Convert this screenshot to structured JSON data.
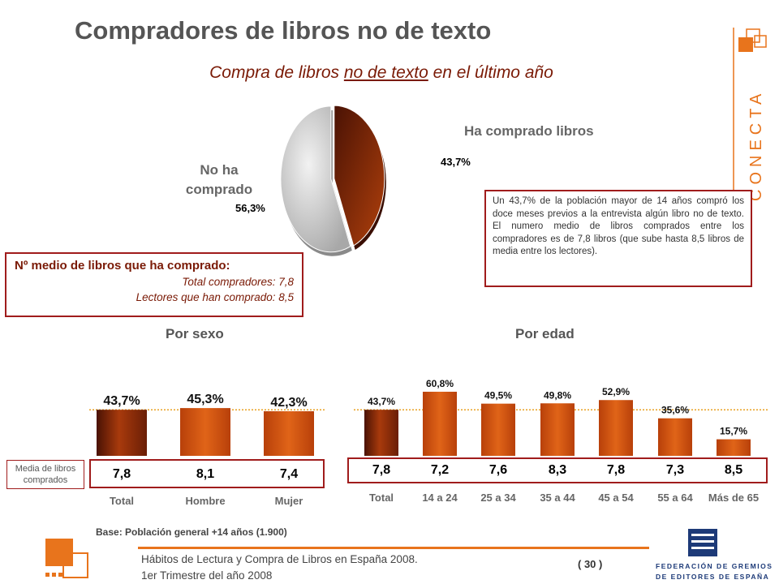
{
  "header": {
    "title": "Compradores de libros no de texto",
    "subtitle_pre": "Compra de libros ",
    "subtitle_underlined": "no de texto",
    "subtitle_post": " en el último año"
  },
  "brand": {
    "wordmark": "CONECTA",
    "color": "#e8741c"
  },
  "pie": {
    "label_bought": "Ha comprado libros",
    "label_not_bought_1": "No ha",
    "label_not_bought_2": "comprado",
    "pct_bought": "43,7%",
    "pct_not_bought": "56,3%"
  },
  "description": "Un 43,7% de la población mayor de 14 años compró los doce meses previos a la entrevista algún libro no de texto. El numero medio de libros comprados entre los compradores es de 7,8 libros (que sube hasta 8,5 libros de media entre los lectores).",
  "average_box": {
    "heading": "Nº medio de libros que ha comprado:",
    "row1": "Total compradores:  7,8",
    "row2": "Lectores que han comprado:  8,5"
  },
  "sections": {
    "by_sex": "Por sexo",
    "by_age": "Por edad"
  },
  "media_label_1": "Media de libros",
  "media_label_2": "comprados",
  "chart_data": [
    {
      "type": "pie",
      "title": "Compra de libros no de texto en el último año",
      "categories": [
        "Ha comprado libros",
        "No ha comprado"
      ],
      "values": [
        43.7,
        56.3
      ],
      "colors": [
        "#8a2a08",
        "#c8c8c8"
      ]
    },
    {
      "type": "bar",
      "title": "Por sexo",
      "categories": [
        "Total",
        "Hombre",
        "Mujer"
      ],
      "values": [
        43.7,
        45.3,
        42.3
      ],
      "labels": [
        "43,7%",
        "45,3%",
        "42,3%"
      ],
      "reference_line": 43.7,
      "average_books": [
        "7,8",
        "8,1",
        "7,4"
      ],
      "ylim": [
        0,
        70
      ]
    },
    {
      "type": "bar",
      "title": "Por edad",
      "categories": [
        "Total",
        "14 a 24",
        "25 a 34",
        "35 a 44",
        "45 a 54",
        "55 a 64",
        "Más de 65"
      ],
      "values": [
        43.7,
        60.8,
        49.5,
        49.8,
        52.9,
        35.6,
        15.7
      ],
      "labels": [
        "43,7%",
        "60,8%",
        "49,5%",
        "49,8%",
        "52,9%",
        "35,6%",
        "15,7%"
      ],
      "reference_line": 43.7,
      "average_books": [
        "7,8",
        "7,2",
        "7,6",
        "8,3",
        "7,8",
        "7,3",
        "8,5"
      ],
      "ylim": [
        0,
        70
      ]
    }
  ],
  "footer": {
    "base": "Base: Población general +14 años (1.900)",
    "line1": "Hábitos de Lectura y Compra de Libros en España 2008.",
    "line2": "1er Trimestre del año 2008",
    "page": "( 30 )",
    "publisher_1": "FEDERACIÓN DE GREMIOS",
    "publisher_2": "DE EDITORES DE ESPAÑA"
  }
}
